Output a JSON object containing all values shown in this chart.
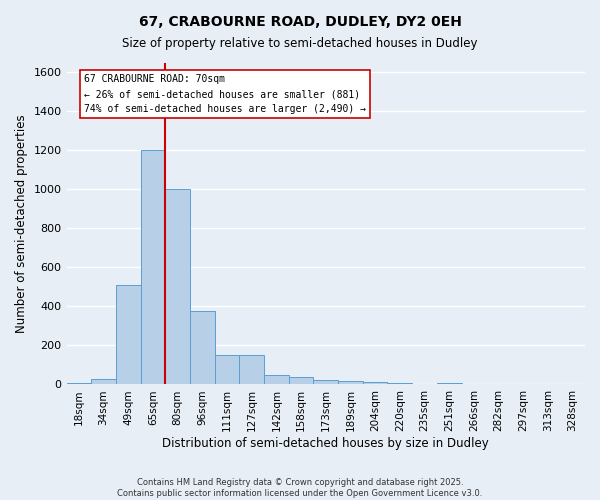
{
  "title1": "67, CRABOURNE ROAD, DUDLEY, DY2 0EH",
  "title2": "Size of property relative to semi-detached houses in Dudley",
  "xlabel": "Distribution of semi-detached houses by size in Dudley",
  "ylabel": "Number of semi-detached properties",
  "categories": [
    "18sqm",
    "34sqm",
    "49sqm",
    "65sqm",
    "80sqm",
    "96sqm",
    "111sqm",
    "127sqm",
    "142sqm",
    "158sqm",
    "173sqm",
    "189sqm",
    "204sqm",
    "220sqm",
    "235sqm",
    "251sqm",
    "266sqm",
    "282sqm",
    "297sqm",
    "313sqm",
    "328sqm"
  ],
  "values": [
    10,
    30,
    510,
    1200,
    1000,
    375,
    150,
    150,
    50,
    40,
    25,
    20,
    15,
    10,
    0,
    10,
    0,
    0,
    0,
    0,
    0
  ],
  "bar_color": "#b8cfe8",
  "bar_edge_color": "#5a9fd4",
  "red_line_x": 3.5,
  "red_line_color": "#cc0000",
  "annotation_line1": "67 CRABOURNE ROAD: 70sqm",
  "annotation_line2": "← 26% of semi-detached houses are smaller (881)",
  "annotation_line3": "74% of semi-detached houses are larger (2,490) →",
  "annotation_box_color": "#ffffff",
  "annotation_box_edge_color": "#cc0000",
  "ylim": [
    0,
    1650
  ],
  "yticks": [
    0,
    200,
    400,
    600,
    800,
    1000,
    1200,
    1400,
    1600
  ],
  "bg_color": "#e8eef6",
  "grid_color": "#ffffff",
  "footer1": "Contains HM Land Registry data © Crown copyright and database right 2025.",
  "footer2": "Contains public sector information licensed under the Open Government Licence v3.0."
}
